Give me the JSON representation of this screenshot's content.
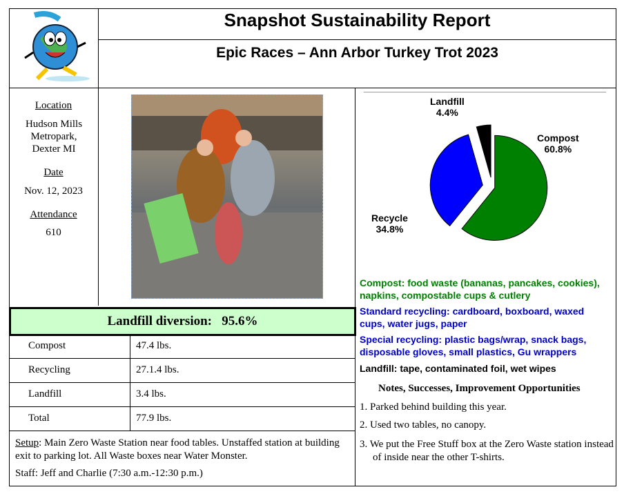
{
  "header": {
    "title": "Snapshot Sustainability Report",
    "subtitle": "Epic Races – Ann Arbor Turkey Trot 2023"
  },
  "info": {
    "location_label": "Location",
    "location": "Hudson Mills Metropark, Dexter MI",
    "date_label": "Date",
    "date": "Nov. 12, 2023",
    "attendance_label": "Attendance",
    "attendance": "610"
  },
  "diversion": {
    "label": "Landfill  diversion:",
    "value": "95.6%"
  },
  "table": [
    {
      "label": "Compost",
      "value": "47.4 lbs."
    },
    {
      "label": "Recycling",
      "value": "27.1.4 lbs."
    },
    {
      "label": "Landfill",
      "value": "3.4 lbs."
    },
    {
      "label": "Total",
      "value": "77.9 lbs."
    }
  ],
  "setup": {
    "label": "Setup",
    "text": ": Main Zero Waste Station near food tables. Unstaffed station at building exit to parking lot. All Waste boxes near Water Monster.",
    "staff": "Staff: Jeff and Charlie (7:30 a.m.-12:30 p.m.)"
  },
  "chart_data": {
    "type": "pie",
    "categories": [
      "Compost",
      "Recycle",
      "Landfill"
    ],
    "values": [
      60.8,
      34.8,
      4.4
    ],
    "labels": [
      "60.8%",
      "34.8%",
      "4.4%"
    ],
    "colors": [
      "#008000",
      "#0000ff",
      "#000000"
    ]
  },
  "legend": {
    "compost": "Compost: food waste (bananas, pancakes, cookies), napkins, compostable cups & cutlery",
    "standard": "Standard recycling: cardboard, boxboard, waxed cups, water jugs, paper",
    "special": "Special recycling: plastic bags/wrap, snack bags, disposable gloves, small plastics, Gu wrappers",
    "landfill": "Landfill: tape, contaminated foil, wet wipes"
  },
  "notes": {
    "title": "Notes, Successes, Improvement Opportunities",
    "items": [
      "1.  Parked behind building this year.",
      "2.  Used two tables, no canopy.",
      "3.  We put the Free Stuff box at the Zero Waste station instead of inside near the other T-shirts."
    ]
  }
}
